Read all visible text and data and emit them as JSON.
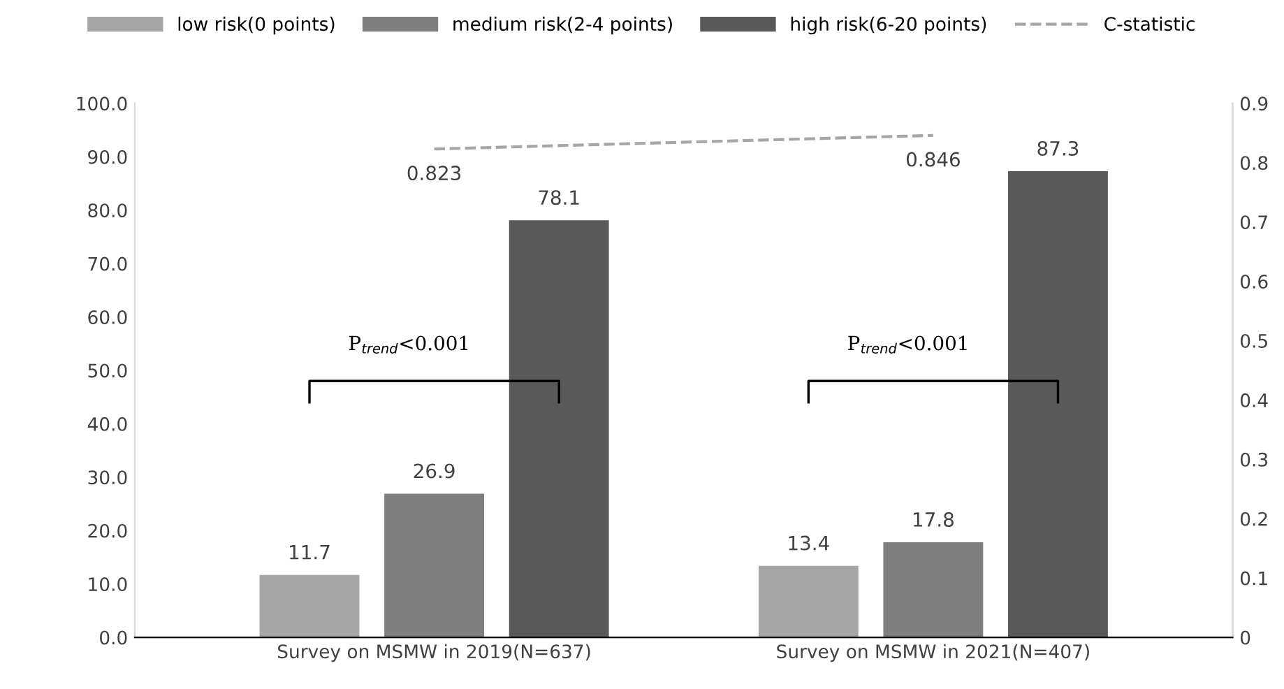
{
  "chart_data": {
    "type": "bar",
    "categories": [
      "Survey on MSMW in 2019(N=637)",
      "Survey on MSMW in 2021(N=407)"
    ],
    "series": [
      {
        "name": "low risk(0 points)",
        "color": "#a6a6a6",
        "values": [
          11.7,
          13.4
        ]
      },
      {
        "name": "medium risk(2-4 points)",
        "color": "#7f7f7f",
        "values": [
          26.9,
          17.8
        ]
      },
      {
        "name": "high risk(6-20 points)",
        "color": "#595959",
        "values": [
          78.1,
          87.3
        ]
      },
      {
        "name": "C-statistic",
        "type": "line",
        "axis": "y2",
        "color": "#a6a6a6",
        "line_style": "dashed",
        "values": [
          0.823,
          0.846
        ]
      }
    ],
    "data_labels": true,
    "ylim": [
      0,
      100
    ],
    "yticks": [
      {
        "value": 0,
        "label": "0.0"
      },
      {
        "value": 10,
        "label": "10.0"
      },
      {
        "value": 20,
        "label": "20.0"
      },
      {
        "value": 30,
        "label": "30.0"
      },
      {
        "value": 40,
        "label": "40.0"
      },
      {
        "value": 50,
        "label": "50.0"
      },
      {
        "value": 60,
        "label": "60.0"
      },
      {
        "value": 70,
        "label": "70.0"
      },
      {
        "value": 80,
        "label": "80.0"
      },
      {
        "value": 90,
        "label": "90.0"
      },
      {
        "value": 100,
        "label": "100.0"
      }
    ],
    "y2lim": [
      0,
      0.9
    ],
    "y2ticks": [
      0,
      0.1,
      0.2,
      0.3,
      0.4,
      0.5,
      0.6,
      0.7,
      0.8,
      0.9
    ],
    "annotations": [
      "P$_{trend}$<0.001",
      "P$_{trend}$<0.001"
    ],
    "legend": "top"
  }
}
